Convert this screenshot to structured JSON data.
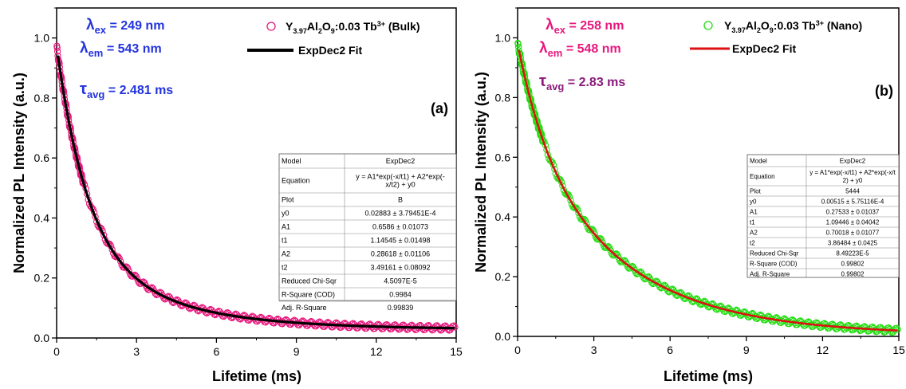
{
  "chart_data": [
    {
      "type": "scatter",
      "panel_label": "(a)",
      "xlabel": "Lifetime (ms)",
      "ylabel": "Normalized PL Intensity (a.u.)",
      "xlim": [
        0,
        15
      ],
      "ylim": [
        0,
        1.1
      ],
      "x_ticks": [
        "0",
        "3",
        "6",
        "9",
        "12",
        "15"
      ],
      "y_ticks": [
        "0.0",
        "0.2",
        "0.4",
        "0.6",
        "0.8",
        "1.0"
      ],
      "grid": false,
      "legend_position": "top-right",
      "annotations": {
        "ex_sym": "λ",
        "ex_sub": "ex",
        "ex_val": " =  249 nm",
        "em_sym": "λ",
        "em_sub": "em",
        "em_val": " = 543 nm",
        "tau_sym": "τ",
        "tau_sub": "avg",
        "tau_val": " = 2.481 ms",
        "color": "#2233dd",
        "tau_color": "#2233dd"
      },
      "legend": {
        "marker_color": "#e8177d",
        "fit_color": "#000000",
        "data_name_parts": [
          "Y",
          "3.97",
          "Al",
          "2",
          "O",
          "9",
          ":0.03 Tb",
          "3+",
          " (Bulk)"
        ],
        "fit_name": "ExpDec2 Fit"
      },
      "series": [
        {
          "name": "Y3.97Al2O9:0.03 Tb3+ (Bulk)",
          "style": "markers",
          "color": "#e8177d",
          "model": {
            "y0": 0.02883,
            "A1": 0.6586,
            "t1": 1.14545,
            "A2": 0.28618,
            "t2": 3.49161
          }
        },
        {
          "name": "ExpDec2 Fit",
          "style": "line",
          "color": "#000000",
          "model": {
            "y0": 0.02883,
            "A1": 0.6586,
            "t1": 1.14545,
            "A2": 0.28618,
            "t2": 3.49161
          }
        }
      ],
      "fit_table": [
        [
          "Model",
          "ExpDec2"
        ],
        [
          "Equation",
          "y = A1*exp(-x/t1) + A2*exp(-x/t2) + y0"
        ],
        [
          "Plot",
          "B"
        ],
        [
          "y0",
          "0.02883 ± 3.79451E-4"
        ],
        [
          "A1",
          "0.6586 ± 0.01073"
        ],
        [
          "t1",
          "1.14545 ± 0.01498"
        ],
        [
          "A2",
          "0.28618 ± 0.01106"
        ],
        [
          "t2",
          "3.49161 ± 0.08092"
        ],
        [
          "Reduced Chi-Sqr",
          "4.5097E-5"
        ],
        [
          "R-Square (COD)",
          "0.9984"
        ],
        [
          "Adj. R-Square",
          "0.99839"
        ]
      ]
    },
    {
      "type": "scatter",
      "panel_label": "(b)",
      "xlabel": "Lifetime (ms)",
      "ylabel": "Normalized PL Intensity (a.u.)",
      "xlim": [
        0,
        15
      ],
      "ylim": [
        0,
        1.1
      ],
      "x_ticks": [
        "0",
        "3",
        "6",
        "9",
        "12",
        "15"
      ],
      "y_ticks": [
        "0.0",
        "0.2",
        "0.4",
        "0.6",
        "0.8",
        "1.0"
      ],
      "grid": false,
      "legend_position": "top-right",
      "annotations": {
        "ex_sym": "λ",
        "ex_sub": "ex",
        "ex_val": " = 258 nm",
        "em_sym": "λ",
        "em_sub": "em",
        "em_val": " = 548 nm",
        "tau_sym": "τ",
        "tau_sub": "avg",
        "tau_val": " = 2.83 ms",
        "color": "#e8177d",
        "tau_color": "#8a1a7a"
      },
      "legend": {
        "marker_color": "#22dd11",
        "fit_color": "#dd1111",
        "data_name_parts": [
          "Y",
          "3.97",
          "Al",
          "2",
          "O",
          "9",
          ":0.03 Tb",
          "3+",
          " (Nano)"
        ],
        "fit_name": "ExpDec2 Fit"
      },
      "series": [
        {
          "name": "Y3.97Al2O9:0.03 Tb3+ (Nano)",
          "style": "markers",
          "color": "#22dd11",
          "model": {
            "y0": 0.00515,
            "A1": 0.27533,
            "t1": 1.09446,
            "A2": 0.70018,
            "t2": 3.86484
          }
        },
        {
          "name": "ExpDec2 Fit",
          "style": "line",
          "color": "#dd1111",
          "model": {
            "y0": 0.00515,
            "A1": 0.27533,
            "t1": 1.09446,
            "A2": 0.70018,
            "t2": 3.86484
          }
        }
      ],
      "fit_table": [
        [
          "Model",
          "ExpDec2"
        ],
        [
          "Equation",
          "y = A1*exp(-x/t1) + A2*exp(-x/t2) + y0"
        ],
        [
          "Plot",
          "5444"
        ],
        [
          "y0",
          "0.00515 ± 5.75116E-4"
        ],
        [
          "A1",
          "0.27533 ± 0.01037"
        ],
        [
          "t1",
          "1.09446 ± 0.04042"
        ],
        [
          "A2",
          "0.70018 ± 0.01077"
        ],
        [
          "t2",
          "3.86484 ± 0.0425"
        ],
        [
          "Reduced Chi-Sqr",
          "8.49223E-5"
        ],
        [
          "R-Square (COD)",
          "0.99802"
        ],
        [
          "Adj. R-Square",
          "0.99802"
        ]
      ]
    }
  ]
}
